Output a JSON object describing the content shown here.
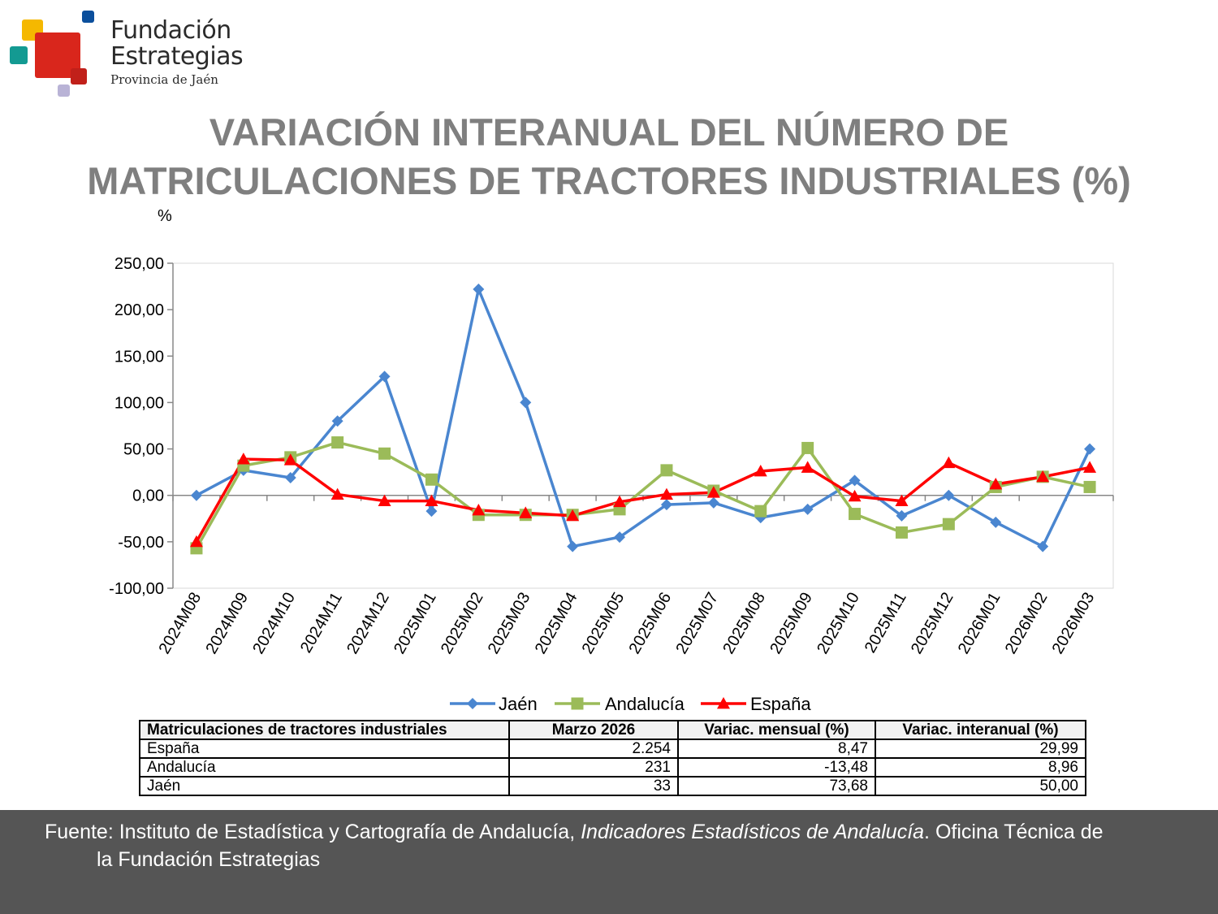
{
  "logo": {
    "line1": "Fundación",
    "line2": "Estrategias",
    "line3": "Provincia de Jaén"
  },
  "title": {
    "line1": "VARIACIÓN INTERANUAL DEL NÚMERO DE",
    "line2": "MATRICULACIONES DE TRACTORES INDUSTRIALES (%)"
  },
  "chart_data": {
    "type": "line",
    "unit_label": "%",
    "ylim": [
      -100,
      250
    ],
    "yticks": [
      "250,00",
      "200,00",
      "150,00",
      "100,00",
      "50,00",
      "0,00",
      "-50,00",
      "-100,00"
    ],
    "ytick_values": [
      250,
      200,
      150,
      100,
      50,
      0,
      -50,
      -100
    ],
    "grid": false,
    "legend": "bottom",
    "categories": [
      "2024M08",
      "2024M09",
      "2024M10",
      "2024M11",
      "2024M12",
      "2025M01",
      "2025M02",
      "2025M03",
      "2025M04",
      "2025M05",
      "2025M06",
      "2025M07",
      "2025M08",
      "2025M09",
      "2025M10",
      "2025M11",
      "2025M12",
      "2026M01",
      "2026M02",
      "2026M03"
    ],
    "series": [
      {
        "name": "Jaén",
        "color": "#4a86d0",
        "marker": "diamond",
        "values": [
          0,
          27,
          19,
          80,
          128,
          -17,
          222,
          100,
          -55,
          -45,
          -10,
          -8,
          -24,
          -15,
          16,
          -22,
          0,
          -29,
          -55,
          50
        ]
      },
      {
        "name": "Andalucía",
        "color": "#9bbb59",
        "marker": "square",
        "values": [
          -57,
          32,
          41,
          57,
          45,
          17,
          -21,
          -21,
          -21,
          -15,
          27,
          5,
          -17,
          51,
          -20,
          -40,
          -31,
          9,
          20,
          9
        ]
      },
      {
        "name": "España",
        "color": "#ff0000",
        "marker": "triangle",
        "values": [
          -50,
          39,
          38,
          1,
          -6,
          -6,
          -16,
          -19,
          -22,
          -7,
          1,
          3,
          26,
          30,
          -1,
          -6,
          35,
          12,
          20,
          30
        ]
      }
    ]
  },
  "table": {
    "headers": [
      "Matriculaciones de tractores industriales",
      "Marzo 2026",
      "Variac. mensual (%)",
      "Variac. interanual (%)"
    ],
    "rows": [
      {
        "name": "España",
        "value": "2.254",
        "monthly": "8,47",
        "annual": "29,99"
      },
      {
        "name": "Andalucía",
        "value": "231",
        "monthly": "-13,48",
        "annual": "8,96"
      },
      {
        "name": "Jaén",
        "value": "33",
        "monthly": "73,68",
        "annual": "50,00"
      }
    ]
  },
  "footer": {
    "prefix": "Fuente: Instituto de Estadística y Cartografía de Andalucía, ",
    "italic": "Indicadores Estadísticos de Andalucía",
    "suffix_line1": ". Oficina Técnica de",
    "line2": "la Fundación Estrategias"
  },
  "colors": {
    "logo_yellow": "#f5b800",
    "logo_red": "#d9261c",
    "logo_teal": "#139a92",
    "logo_blue": "#0b4f9c",
    "logo_lavender": "#b9b3d6",
    "title_gray": "#7f7f7f",
    "footer_bg": "#555555"
  }
}
